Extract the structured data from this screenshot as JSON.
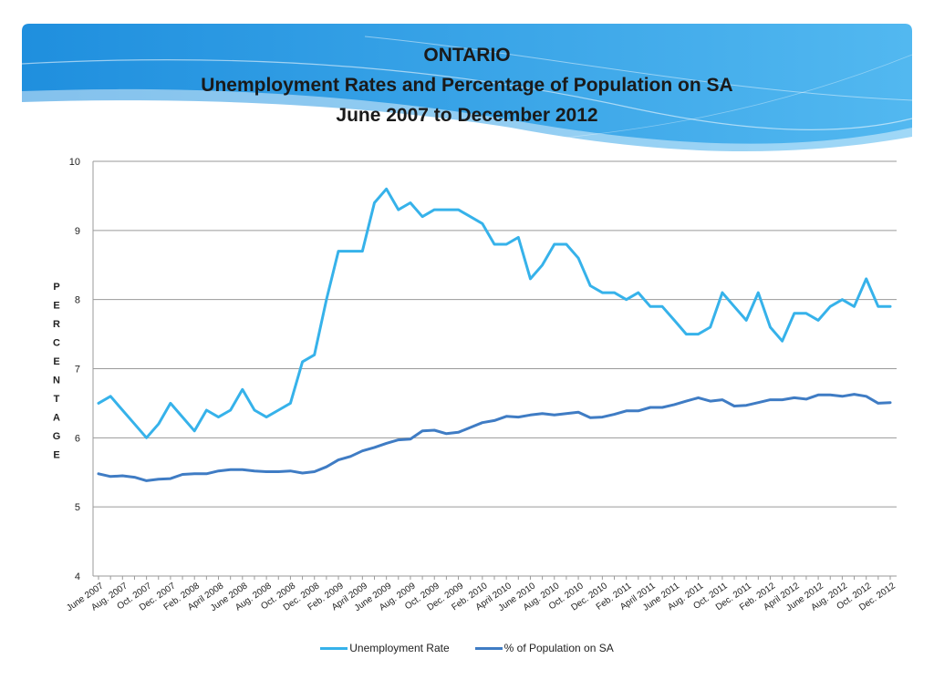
{
  "colors": {
    "unemployment": "#36b2ea",
    "sa": "#3f7cc4",
    "banner": "#2e9ee2"
  },
  "title": {
    "line1": "ONTARIO",
    "line2": "Unemployment Rates and Percentage of Population on SA",
    "line3": "June 2007 to December 2012"
  },
  "chart_data": {
    "type": "line",
    "ylabel": "PERCENTAGE",
    "ylim": [
      4,
      10
    ],
    "yticks": [
      4,
      5,
      6,
      7,
      8,
      9,
      10
    ],
    "grid": true,
    "legend": "bottom",
    "x_tick_labels": [
      "June 2007",
      "Aug. 2007",
      "Oct. 2007",
      "Dec. 2007",
      "Feb. 2008",
      "April 2008",
      "June 2008",
      "Aug. 2008",
      "Oct. 2008",
      "Dec. 2008",
      "Feb. 2009",
      "April 2009",
      "June 2009",
      "Aug. 2009",
      "Oct. 2009",
      "Dec. 2009",
      "Feb. 2010",
      "April 2010",
      "June 2010",
      "Aug. 2010",
      "Oct. 2010",
      "Dec. 2010",
      "Feb. 2011",
      "April 2011",
      "June 2011",
      "Aug. 2011",
      "Oct. 2011",
      "Dec. 2011",
      "Feb. 2012",
      "April 2012",
      "June 2012",
      "Aug. 2012",
      "Oct. 2012",
      "Dec. 2012"
    ],
    "x_tick_every": 2,
    "series": [
      {
        "name": "Unemployment Rate",
        "values": [
          6.5,
          6.6,
          6.4,
          6.2,
          6.0,
          6.2,
          6.5,
          6.3,
          6.1,
          6.4,
          6.3,
          6.4,
          6.7,
          6.4,
          6.3,
          6.4,
          6.5,
          7.1,
          7.2,
          8.0,
          8.7,
          8.7,
          8.7,
          9.4,
          9.6,
          9.3,
          9.4,
          9.2,
          9.3,
          9.3,
          9.3,
          9.2,
          9.1,
          8.8,
          8.8,
          8.9,
          8.3,
          8.5,
          8.8,
          8.8,
          8.6,
          8.2,
          8.1,
          8.1,
          8.0,
          8.1,
          7.9,
          7.9,
          7.7,
          7.5,
          7.5,
          7.6,
          8.1,
          7.9,
          7.7,
          8.1,
          7.6,
          7.4,
          7.8,
          7.8,
          7.7,
          7.9,
          8.0,
          7.9,
          8.3,
          7.9,
          7.9
        ]
      },
      {
        "name": "% of Population on SA",
        "values": [
          5.48,
          5.44,
          5.45,
          5.43,
          5.38,
          5.4,
          5.41,
          5.47,
          5.48,
          5.48,
          5.52,
          5.54,
          5.54,
          5.52,
          5.51,
          5.51,
          5.52,
          5.49,
          5.51,
          5.58,
          5.68,
          5.73,
          5.81,
          5.86,
          5.92,
          5.97,
          5.98,
          6.1,
          6.11,
          6.06,
          6.08,
          6.15,
          6.22,
          6.25,
          6.31,
          6.3,
          6.33,
          6.35,
          6.33,
          6.35,
          6.37,
          6.29,
          6.3,
          6.34,
          6.39,
          6.39,
          6.44,
          6.44,
          6.48,
          6.53,
          6.58,
          6.53,
          6.55,
          6.46,
          6.47,
          6.51,
          6.55,
          6.55,
          6.58,
          6.56,
          6.62,
          6.62,
          6.6,
          6.63,
          6.6,
          6.5,
          6.51
        ]
      }
    ]
  }
}
